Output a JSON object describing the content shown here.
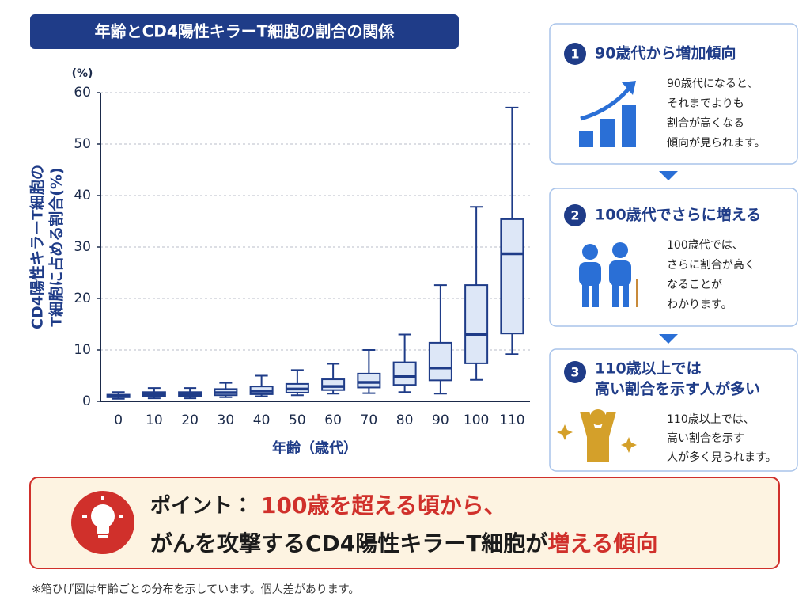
{
  "chart_data": {
    "type": "box",
    "title": "年齢とCD4陽性キラーT細胞の割合の関係",
    "y_unit": "(%)",
    "ylabel": [
      "CD4陽性キラーT細胞の",
      "T細胞に占める割合(%)"
    ],
    "xlabel": "年齢（歳代）",
    "categories": [
      "0",
      "10",
      "20",
      "30",
      "40",
      "50",
      "60",
      "70",
      "80",
      "90",
      "100",
      "110"
    ],
    "low": [
      0.5,
      0.6,
      0.6,
      0.8,
      1.0,
      1.2,
      1.5,
      1.6,
      1.8,
      1.5,
      4.2,
      9.2
    ],
    "q1": [
      0.8,
      1.0,
      1.0,
      1.2,
      1.4,
      1.7,
      2.2,
      2.7,
      3.2,
      4.1,
      7.4,
      13.2
    ],
    "median": [
      1.0,
      1.3,
      1.3,
      1.7,
      2.0,
      2.4,
      2.9,
      3.7,
      4.8,
      6.5,
      13.0,
      28.7
    ],
    "q3": [
      1.3,
      1.8,
      1.8,
      2.4,
      2.9,
      3.4,
      4.3,
      5.4,
      7.6,
      11.4,
      22.6,
      35.4
    ],
    "high": [
      1.8,
      2.6,
      2.6,
      3.6,
      5.0,
      6.1,
      7.3,
      10.0,
      13.0,
      22.6,
      37.8,
      57.1
    ],
    "color": "#1f3c88",
    "box_fill": "#dde7f7",
    "ylim": [
      0,
      60
    ],
    "yticks": [
      0,
      10,
      20,
      30,
      40,
      50,
      60
    ],
    "grid": true
  },
  "panels": [
    {
      "number": "1",
      "title": [
        "90歳代から増加傾向"
      ],
      "text": [
        "90歳代になると、",
        "それまでよりも",
        "割合が高くなる",
        "傾向が見られます。"
      ]
    },
    {
      "number": "2",
      "title": [
        "100歳代でさらに増える"
      ],
      "text": [
        "100歳代では、",
        "さらに割合が高く",
        "なることが",
        "わかります。"
      ]
    },
    {
      "number": "3",
      "title": [
        "110歳以上では",
        "高い割合を示す人が多い"
      ],
      "text": [
        "110歳以上では、",
        "高い割合を示す",
        "人が多く見られます。"
      ]
    }
  ],
  "point": {
    "label": "ポイント：",
    "line1": "100歳を超える頃から、",
    "line2": [
      "がんを攻撃するCD4陽性キラーT細胞が",
      "増える傾向"
    ]
  },
  "footnote": "※箱ひげ図は年齢ごとの分布を示しています。個人差があります。"
}
